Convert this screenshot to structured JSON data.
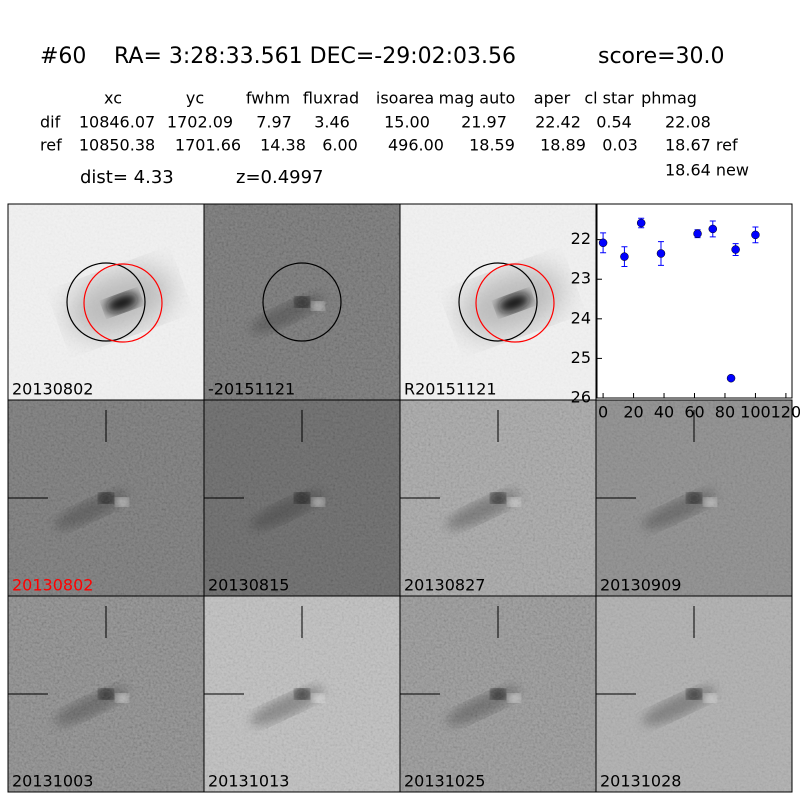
{
  "header": {
    "id": "#60",
    "coords": "RA= 3:28:33.561 DEC=-29:02:03.56",
    "score": "score=30.0"
  },
  "table": {
    "columns": [
      "xc",
      "yc",
      "fwhm",
      "fluxrad",
      "isoarea",
      "mag auto",
      "aper",
      "cl star",
      "phmag"
    ],
    "rows": [
      [
        "dif",
        "10846.07",
        "1702.09",
        "7.97",
        "3.46",
        "15.00",
        "21.97",
        "22.42",
        "0.54",
        "22.08"
      ],
      [
        "ref",
        "10850.38",
        "1701.66",
        "14.38",
        "6.00",
        "496.00",
        "18.59",
        "18.89",
        "0.03",
        "18.67 ref"
      ]
    ],
    "extra": "18.64 new"
  },
  "dist": "dist=  4.33",
  "z": "z=0.4997",
  "cutouts": [
    {
      "label": "20130802"
    },
    {
      "label": "-20151121"
    },
    {
      "label": "R20151121"
    },
    {
      "label": "20130802"
    },
    {
      "label": "20130815"
    },
    {
      "label": "20130827"
    },
    {
      "label": "20130909"
    },
    {
      "label": "20131003"
    },
    {
      "label": "20131013"
    },
    {
      "label": "20131025"
    },
    {
      "label": "20131028"
    }
  ],
  "chart_data": {
    "type": "errorbar",
    "color": "#0000ff",
    "x": [
      0,
      14,
      25,
      38,
      62,
      72,
      84,
      87,
      100
    ],
    "values": [
      22.08,
      22.43,
      21.58,
      22.35,
      21.85,
      21.73,
      25.5,
      22.25,
      21.88
    ],
    "errors": [
      0.25,
      0.25,
      0.12,
      0.3,
      0.1,
      0.2,
      0.05,
      0.15,
      0.2
    ],
    "xlim": [
      -4,
      124
    ],
    "ylim": [
      26,
      21.1
    ],
    "xticks": [
      0,
      20,
      40,
      60,
      80,
      100,
      120
    ],
    "yticks": [
      22,
      23,
      24,
      25,
      26
    ]
  }
}
